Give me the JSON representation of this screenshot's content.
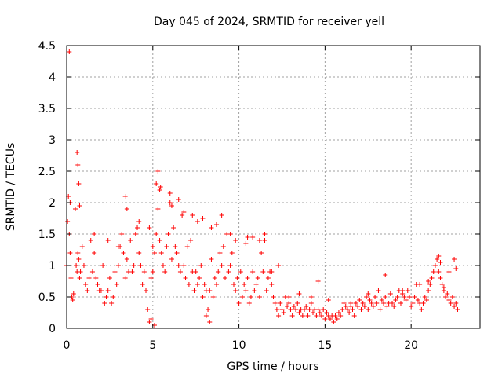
{
  "chart_data": {
    "type": "scatter",
    "title": "Day 045 of 2024, SRMTID for receiver yell",
    "xlabel": "GPS time / hours",
    "ylabel": "SRMTID / TECUs",
    "xlim": [
      0,
      24
    ],
    "ylim": [
      0,
      4.5
    ],
    "xticks": [
      "0",
      "5",
      "10",
      "15",
      "20"
    ],
    "yticks": [
      "0",
      "0.5",
      "1",
      "1.5",
      "2",
      "2.5",
      "3",
      "3.5",
      "4",
      "4.5"
    ],
    "grid": true,
    "color": "#ff0000",
    "marker": "plus",
    "series": [
      {
        "name": "SRMTID",
        "x": [
          0.0,
          0.05,
          0.1,
          0.15,
          0.2,
          0.25,
          0.3,
          0.35,
          0.4,
          0.5,
          0.55,
          0.6,
          0.65,
          0.7,
          0.75,
          0.8,
          0.9,
          1.0,
          1.1,
          1.2,
          1.3,
          1.4,
          1.5,
          1.6,
          1.7,
          1.8,
          1.9,
          2.0,
          2.1,
          2.2,
          2.3,
          2.4,
          2.5,
          2.6,
          2.7,
          2.8,
          2.9,
          3.0,
          3.1,
          3.2,
          3.3,
          3.4,
          3.5,
          3.6,
          3.7,
          3.8,
          3.9,
          4.0,
          4.1,
          4.2,
          4.3,
          4.4,
          4.5,
          4.6,
          4.7,
          4.8,
          4.9,
          5.0,
          5.1,
          5.2,
          5.3,
          5.4,
          5.5,
          5.6,
          5.7,
          5.8,
          5.9,
          6.0,
          6.1,
          6.2,
          6.3,
          6.4,
          6.5,
          6.6,
          6.7,
          6.8,
          6.9,
          7.0,
          7.1,
          7.2,
          7.3,
          7.4,
          7.5,
          7.6,
          7.7,
          7.8,
          7.9,
          8.0,
          8.1,
          8.2,
          8.3,
          8.4,
          8.5,
          8.6,
          8.7,
          8.8,
          8.9,
          9.0,
          9.1,
          9.2,
          9.3,
          9.4,
          9.5,
          9.6,
          9.7,
          9.8,
          9.9,
          10.0,
          10.1,
          10.2,
          10.3,
          10.4,
          10.5,
          10.6,
          10.7,
          10.8,
          10.9,
          11.0,
          11.1,
          11.2,
          11.3,
          11.4,
          11.5,
          11.6,
          11.7,
          11.8,
          11.9,
          12.0,
          12.1,
          12.2,
          12.3,
          12.4,
          12.5,
          12.6,
          12.7,
          12.8,
          12.9,
          13.0,
          13.1,
          13.2,
          13.3,
          13.4,
          13.5,
          13.6,
          13.7,
          13.8,
          13.9,
          14.0,
          14.1,
          14.2,
          14.3,
          14.4,
          14.5,
          14.6,
          14.7,
          14.8,
          14.9,
          15.0,
          15.1,
          15.2,
          15.3,
          15.4,
          15.5,
          15.6,
          15.7,
          15.8,
          15.9,
          16.0,
          16.1,
          16.2,
          16.3,
          16.4,
          16.5,
          16.6,
          16.7,
          16.8,
          16.9,
          17.0,
          17.1,
          17.2,
          17.3,
          17.4,
          17.5,
          17.6,
          17.7,
          17.8,
          17.9,
          18.0,
          18.1,
          18.2,
          18.3,
          18.4,
          18.5,
          18.6,
          18.7,
          18.8,
          18.9,
          19.0,
          19.1,
          19.2,
          19.3,
          19.4,
          19.5,
          19.6,
          19.7,
          19.8,
          19.9,
          20.0,
          20.1,
          20.2,
          20.3,
          20.4,
          20.5,
          20.6,
          20.7,
          20.8,
          20.9,
          21.0,
          21.1,
          21.2,
          21.3,
          21.4,
          21.5,
          21.6,
          21.7,
          21.8,
          21.9,
          22.0,
          22.1,
          22.2,
          22.3,
          22.4,
          22.5,
          22.6,
          22.7,
          0.15,
          0.2,
          0.6,
          0.65,
          0.7,
          0.75,
          3.4,
          3.5,
          5.2,
          5.3,
          5.4,
          5.45,
          6.0,
          6.1,
          6.5,
          6.8,
          7.3,
          7.9,
          8.7,
          9.0,
          9.5,
          10.5,
          11.5,
          11.9,
          12.3,
          14.6,
          18.5,
          21.6,
          21.7,
          22.5,
          22.6,
          1.6,
          2.4,
          3.0,
          4.2,
          4.8,
          5.0,
          7.6,
          8.4,
          9.8,
          10.4,
          10.8,
          11.2,
          12.9,
          13.5,
          14.2,
          15.2,
          16.5,
          17.5,
          19.5,
          20.5,
          21.0,
          21.9,
          22.2,
          5.1,
          4.9,
          8.3,
          8.1
        ],
        "y": [
          1.0,
          1.7,
          2.1,
          1.5,
          1.2,
          0.8,
          0.5,
          0.45,
          0.55,
          1.9,
          1.0,
          0.9,
          1.2,
          1.1,
          0.8,
          0.9,
          1.3,
          1.0,
          0.7,
          0.6,
          0.8,
          1.4,
          0.9,
          1.2,
          0.8,
          0.7,
          0.6,
          0.6,
          1.0,
          0.4,
          0.5,
          0.6,
          0.8,
          0.4,
          0.5,
          0.9,
          0.7,
          1.0,
          1.3,
          1.5,
          1.2,
          0.8,
          1.1,
          0.9,
          1.4,
          0.9,
          1.0,
          1.5,
          1.6,
          1.2,
          1.0,
          0.7,
          0.9,
          0.6,
          0.3,
          0.1,
          0.8,
          0.9,
          1.2,
          1.5,
          1.9,
          1.4,
          1.2,
          1.0,
          0.9,
          1.3,
          1.5,
          2.0,
          1.1,
          1.6,
          1.3,
          1.2,
          1.0,
          0.9,
          1.8,
          1.0,
          0.8,
          1.3,
          0.7,
          1.4,
          0.9,
          0.6,
          0.9,
          0.7,
          0.8,
          1.0,
          0.5,
          0.7,
          0.6,
          0.3,
          0.6,
          1.1,
          0.5,
          0.8,
          0.7,
          0.9,
          1.2,
          1.0,
          1.3,
          0.8,
          1.5,
          0.9,
          1.0,
          1.2,
          0.7,
          0.6,
          0.8,
          0.4,
          0.9,
          0.5,
          0.7,
          0.6,
          0.8,
          0.4,
          0.5,
          0.9,
          0.6,
          0.7,
          0.8,
          0.5,
          1.2,
          0.9,
          1.4,
          0.6,
          0.8,
          0.9,
          0.7,
          0.5,
          0.4,
          0.3,
          0.2,
          0.4,
          0.3,
          0.25,
          0.5,
          0.35,
          0.4,
          0.3,
          0.2,
          0.35,
          0.3,
          0.4,
          0.25,
          0.3,
          0.2,
          0.3,
          0.35,
          0.2,
          0.3,
          0.4,
          0.25,
          0.3,
          0.2,
          0.3,
          0.25,
          0.2,
          0.3,
          0.15,
          0.25,
          0.2,
          0.15,
          0.2,
          0.1,
          0.2,
          0.15,
          0.25,
          0.2,
          0.3,
          0.4,
          0.35,
          0.3,
          0.25,
          0.35,
          0.3,
          0.2,
          0.4,
          0.35,
          0.45,
          0.3,
          0.4,
          0.35,
          0.5,
          0.3,
          0.45,
          0.4,
          0.35,
          0.5,
          0.4,
          0.6,
          0.3,
          0.45,
          0.4,
          0.5,
          0.35,
          0.4,
          0.55,
          0.4,
          0.35,
          0.45,
          0.5,
          0.6,
          0.4,
          0.55,
          0.5,
          0.45,
          0.6,
          0.5,
          0.35,
          0.4,
          0.5,
          0.7,
          0.45,
          0.4,
          0.3,
          0.4,
          0.5,
          0.45,
          0.6,
          0.7,
          0.8,
          0.9,
          1.0,
          1.1,
          0.9,
          0.8,
          0.7,
          0.6,
          0.5,
          0.55,
          0.45,
          0.4,
          0.5,
          0.35,
          0.4,
          0.3,
          4.4,
          2.0,
          2.8,
          2.6,
          2.3,
          1.95,
          2.1,
          1.9,
          2.3,
          2.5,
          2.2,
          2.25,
          2.15,
          1.95,
          2.05,
          1.85,
          1.8,
          1.75,
          1.65,
          1.8,
          1.5,
          1.45,
          1.5,
          0.9,
          1.0,
          0.75,
          0.85,
          1.15,
          1.05,
          1.1,
          0.95,
          1.5,
          1.4,
          1.3,
          1.7,
          1.6,
          1.3,
          1.7,
          1.6,
          1.4,
          1.35,
          1.45,
          1.4,
          0.5,
          0.55,
          0.5,
          0.45,
          0.4,
          0.55,
          0.6,
          0.7,
          0.75,
          0.65,
          0.9,
          0.05,
          0.15,
          0.1,
          0.2
        ]
      }
    ]
  }
}
